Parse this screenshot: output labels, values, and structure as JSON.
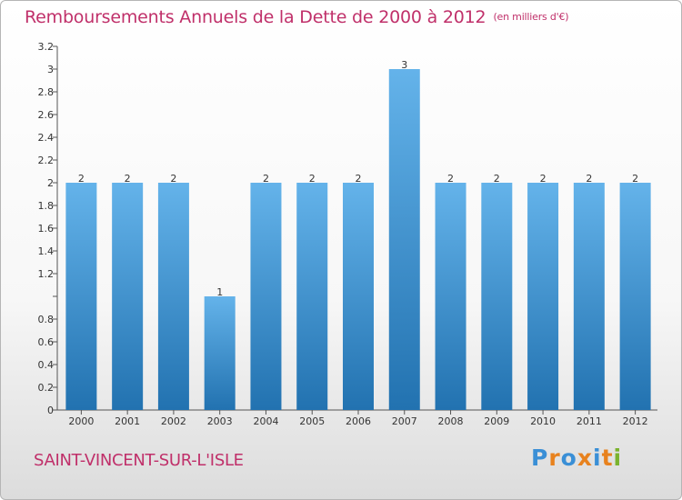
{
  "header": {
    "title": "Remboursements Annuels de la Dette de 2000 à 2012",
    "unit": "(en milliers d'€)"
  },
  "footer": {
    "commune": "SAINT-VINCENT-SUR-L'ISLE",
    "logo": "Proxiti"
  },
  "colors": {
    "title": "#c0306a",
    "bar_light": "#64b3ea",
    "bar_dark": "#2272b0",
    "logo_letters": [
      "#3a8fd6",
      "#e8821e",
      "#3a8fd6",
      "#e8821e",
      "#3a8fd6",
      "#e8821e",
      "#7ab32e"
    ]
  },
  "chart_data": {
    "type": "bar",
    "title": "Remboursements Annuels de la Dette de 2000 à 2012",
    "categories": [
      "2000",
      "2001",
      "2002",
      "2003",
      "2004",
      "2005",
      "2006",
      "2007",
      "2008",
      "2009",
      "2010",
      "2011",
      "2012"
    ],
    "values": [
      2,
      2,
      2,
      1,
      2,
      2,
      2,
      3,
      2,
      2,
      2,
      2,
      2
    ],
    "data_labels": [
      "2",
      "2",
      "2",
      "1",
      "2",
      "2",
      "2",
      "3",
      "2",
      "2",
      "2",
      "2",
      "2"
    ],
    "ylim": [
      0,
      3.2
    ],
    "yticks": [
      0,
      0.2,
      0.4,
      0.6,
      0.8,
      1,
      1.2,
      1.4,
      1.6,
      1.8,
      2,
      2.2,
      2.4,
      2.6,
      2.8,
      3,
      3.2
    ],
    "ytick_labels": [
      "0",
      "0.2",
      "0.4",
      "0.6",
      "0.8",
      "",
      "1.2",
      "1.4",
      "1.6",
      "1.8",
      "2",
      "2.2",
      "2.4",
      "2.6",
      "2.8",
      "3",
      "3.2"
    ],
    "xlabel": "",
    "ylabel": "",
    "grid": false
  }
}
